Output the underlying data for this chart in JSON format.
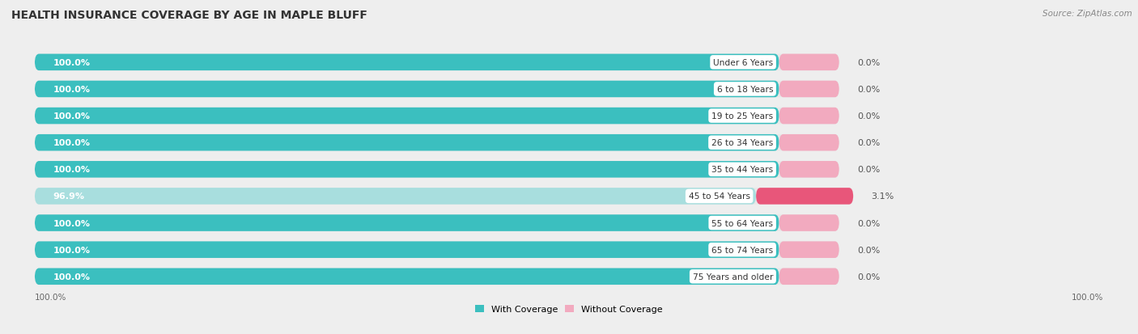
{
  "title": "HEALTH INSURANCE COVERAGE BY AGE IN MAPLE BLUFF",
  "source": "Source: ZipAtlas.com",
  "categories": [
    "Under 6 Years",
    "6 to 18 Years",
    "19 to 25 Years",
    "26 to 34 Years",
    "35 to 44 Years",
    "45 to 54 Years",
    "55 to 64 Years",
    "65 to 74 Years",
    "75 Years and older"
  ],
  "with_coverage": [
    100.0,
    100.0,
    100.0,
    100.0,
    100.0,
    96.9,
    100.0,
    100.0,
    100.0
  ],
  "without_coverage": [
    0.0,
    0.0,
    0.0,
    0.0,
    0.0,
    3.1,
    0.0,
    0.0,
    0.0
  ],
  "with_coverage_color_full": "#3BBFBF",
  "with_coverage_color_partial": "#A8DEDE",
  "without_coverage_color_low": "#F2AABF",
  "without_coverage_color_high": "#E8567A",
  "background_color": "#eeeeee",
  "bar_bg_color": "#e8e8e8",
  "title_fontsize": 10,
  "source_fontsize": 7.5,
  "label_fontsize": 8,
  "axis_label_fontsize": 7.5,
  "legend_fontsize": 8
}
